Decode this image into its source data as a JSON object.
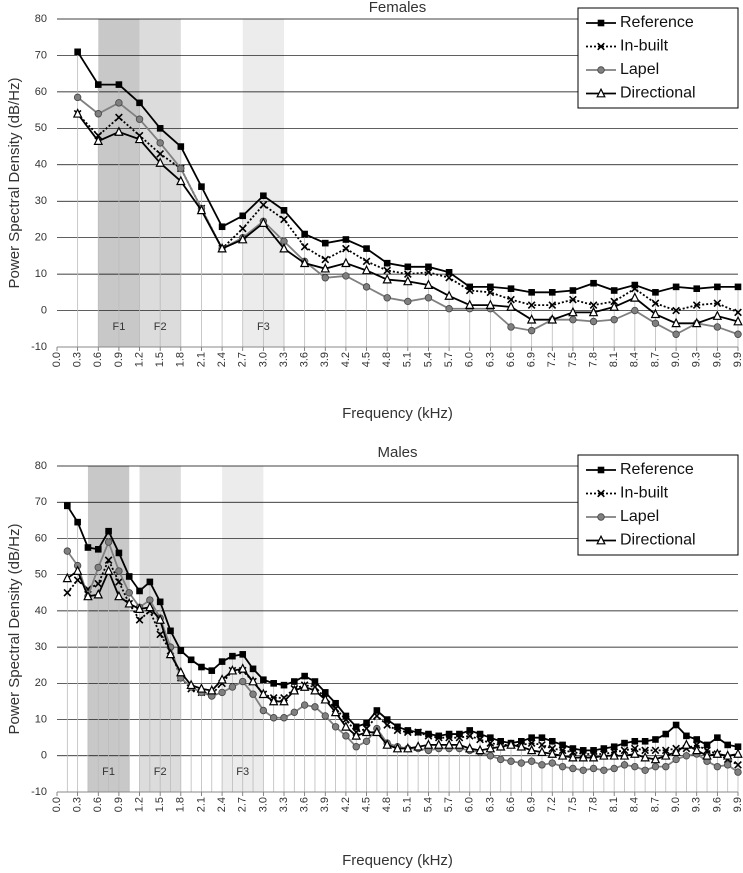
{
  "chart_data": [
    {
      "type": "line",
      "title": "Females",
      "x_label": "Frequency (kHz)",
      "y_label": "Power Spectral Density (dB/Hz)",
      "x": [
        0.3,
        0.6,
        0.9,
        1.2,
        1.5,
        1.8,
        2.1,
        2.4,
        2.7,
        3.0,
        3.3,
        3.6,
        3.9,
        4.2,
        4.5,
        4.8,
        5.1,
        5.4,
        5.7,
        6.0,
        6.3,
        6.6,
        6.9,
        7.2,
        7.5,
        7.8,
        8.1,
        8.4,
        8.7,
        9.0,
        9.3,
        9.6,
        9.9
      ],
      "series": [
        {
          "name": "Reference",
          "color": "#000000",
          "marker": "square",
          "dash": "solid",
          "values": [
            71,
            62,
            62,
            57,
            50,
            45,
            34,
            23,
            26,
            31.5,
            27.5,
            21,
            18.5,
            19.5,
            17,
            13,
            12,
            12,
            10.5,
            6.5,
            6.5,
            6,
            5,
            5,
            5.5,
            7.5,
            5.5,
            7,
            5,
            6.5,
            6,
            6.5,
            6.5
          ]
        },
        {
          "name": "In-built",
          "color": "#000000",
          "marker": "cross",
          "dash": "dotted",
          "values": [
            54,
            48,
            53,
            48,
            43,
            39,
            28,
            17,
            22.5,
            29,
            25,
            17.5,
            14,
            17,
            13.5,
            11,
            10,
            10.5,
            9,
            5.5,
            5,
            3,
            1.5,
            1.5,
            3,
            1.5,
            2.5,
            6,
            2,
            0,
            1.5,
            2,
            -0.5
          ]
        },
        {
          "name": "Lapel",
          "color": "#808080",
          "marker": "circle",
          "dash": "solid",
          "values": [
            58.5,
            54,
            57,
            52.5,
            46,
            39,
            28,
            17,
            20,
            24.5,
            19,
            13.5,
            9,
            9.5,
            6.5,
            3.5,
            2.5,
            3.5,
            0.5,
            0.5,
            0.5,
            -4.5,
            -5.5,
            -2.5,
            -2.5,
            -3,
            -2.5,
            0,
            -3.5,
            -6.5,
            -3.5,
            -4.5,
            -6.5
          ]
        },
        {
          "name": "Directional",
          "color": "#000000",
          "marker": "triangle",
          "dash": "solid",
          "values": [
            54,
            46.5,
            49,
            47,
            40.5,
            35.5,
            27.5,
            17,
            19.5,
            24,
            17,
            13,
            11.5,
            13,
            11,
            8.5,
            8,
            7,
            4,
            1.5,
            1.5,
            1,
            -2.5,
            -2.5,
            -0.5,
            -0.5,
            1,
            3.5,
            -1,
            -3.5,
            -3.5,
            -1.5,
            -3
          ]
        }
      ],
      "regions": [
        {
          "label": "F1",
          "from": 0.6,
          "to": 1.2,
          "color": "#c8c8c8"
        },
        {
          "label": "F2",
          "from": 1.2,
          "to": 1.8,
          "color": "#dcdcdc"
        },
        {
          "label": "F3",
          "from": 2.7,
          "to": 3.3,
          "color": "#ececec"
        }
      ],
      "xlim": [
        0,
        9.9
      ],
      "xticks": [
        {
          "value": 0,
          "label": "0.0"
        },
        0.3,
        0.6,
        0.9,
        1.2,
        1.5,
        1.8,
        2.1,
        2.4,
        2.7,
        {
          "value": 3,
          "label": "3.0"
        },
        3.3,
        3.6,
        3.9,
        4.2,
        4.5,
        4.8,
        5.1,
        5.4,
        5.7,
        {
          "value": 6,
          "label": "6.0"
        },
        6.3,
        6.6,
        6.9,
        7.2,
        7.5,
        7.8,
        8.1,
        8.4,
        8.7,
        {
          "value": 9,
          "label": "9.0"
        },
        9.3,
        9.6,
        9.9
      ],
      "ylim": [
        -10,
        80
      ],
      "yticks": [
        -10,
        0,
        10,
        20,
        30,
        40,
        50,
        60,
        70,
        80
      ],
      "grid": true,
      "legend": "upper right"
    },
    {
      "type": "line",
      "title": "Males",
      "x_label": "Frequency (kHz)",
      "y_label": "Power Spectral Density (dB/Hz)",
      "x": [
        0.15,
        0.3,
        0.45,
        0.6,
        0.75,
        0.9,
        1.05,
        1.2,
        1.35,
        1.5,
        1.65,
        1.8,
        1.95,
        2.1,
        2.25,
        2.4,
        2.55,
        2.7,
        2.85,
        3.0,
        3.15,
        3.3,
        3.45,
        3.6,
        3.75,
        3.9,
        4.05,
        4.2,
        4.35,
        4.5,
        4.65,
        4.8,
        4.95,
        5.1,
        5.25,
        5.4,
        5.55,
        5.7,
        5.85,
        6.0,
        6.15,
        6.3,
        6.45,
        6.6,
        6.75,
        6.9,
        7.05,
        7.2,
        7.35,
        7.5,
        7.65,
        7.8,
        7.95,
        8.1,
        8.25,
        8.4,
        8.55,
        8.7,
        8.85,
        9.0,
        9.15,
        9.3,
        9.45,
        9.6,
        9.75,
        9.9
      ],
      "series": [
        {
          "name": "Reference",
          "color": "#000000",
          "marker": "square",
          "dash": "solid",
          "values": [
            69,
            64.5,
            57.5,
            57,
            62,
            56,
            49.5,
            45.5,
            48,
            42.5,
            34.5,
            29,
            26.5,
            24.5,
            23.5,
            26,
            27.5,
            28,
            24,
            21,
            20,
            19.5,
            20.5,
            22,
            20.5,
            17.5,
            14.5,
            11,
            8,
            9,
            12.5,
            10,
            8,
            7,
            6.5,
            6,
            5.5,
            6,
            6,
            7,
            6,
            5,
            4,
            3.5,
            4,
            5,
            5,
            4,
            3,
            2,
            1.5,
            1.5,
            2,
            2.5,
            3.5,
            4,
            4,
            4.5,
            6,
            8.5,
            5.5,
            4.5,
            3,
            5,
            3,
            2.5
          ]
        },
        {
          "name": "In-built",
          "color": "#000000",
          "marker": "cross",
          "dash": "dotted",
          "values": [
            45,
            48.5,
            46,
            47.5,
            54,
            48,
            42,
            37.5,
            40,
            33.5,
            29,
            21.5,
            18.5,
            17.5,
            17,
            20,
            23.5,
            23.5,
            20.5,
            17,
            16,
            16,
            18.5,
            19.5,
            19,
            16,
            13,
            10,
            6.5,
            7.5,
            11,
            8.5,
            7,
            6.5,
            6.5,
            5.5,
            5,
            5,
            5,
            5.5,
            4.5,
            3.5,
            3,
            3,
            3,
            3.5,
            3,
            2,
            1.5,
            1,
            0.5,
            0.5,
            0.5,
            1,
            1.5,
            2,
            1.5,
            1.5,
            1.5,
            2,
            2,
            3,
            1.5,
            0.5,
            -1,
            -2.5
          ]
        },
        {
          "name": "Lapel",
          "color": "#808080",
          "marker": "circle",
          "dash": "solid",
          "values": [
            56.5,
            52.5,
            44,
            52,
            59,
            51,
            45,
            41,
            43,
            38,
            30,
            21.5,
            19,
            17.5,
            16.5,
            17.5,
            19,
            20.5,
            17,
            12.5,
            10.5,
            10.5,
            12,
            14,
            13.5,
            11,
            8,
            5.5,
            2.5,
            4,
            7.5,
            3.5,
            2.5,
            2,
            2,
            1.5,
            2,
            2,
            2,
            1.5,
            1,
            0,
            -1,
            -1.5,
            -2,
            -1.5,
            -2.5,
            -2,
            -3,
            -3.5,
            -4,
            -3.5,
            -4,
            -3.5,
            -2.5,
            -3,
            -4,
            -3,
            -3,
            -1,
            0,
            0.5,
            -1.5,
            -3,
            -2.5,
            -4.5
          ]
        },
        {
          "name": "Directional",
          "color": "#000000",
          "marker": "triangle",
          "dash": "solid",
          "values": [
            49,
            51,
            44,
            44.5,
            51,
            44,
            42,
            40.5,
            41,
            37.5,
            28,
            23,
            19.5,
            18.5,
            18,
            21,
            23.5,
            24,
            20.5,
            17,
            15,
            15,
            18,
            19,
            18,
            15.5,
            12,
            8,
            5.5,
            6.5,
            6.5,
            3,
            2,
            2,
            2.5,
            3,
            3,
            3,
            3,
            2,
            1.5,
            2,
            2.5,
            3,
            2.5,
            1.5,
            1,
            0.5,
            0,
            -0.5,
            -0.5,
            -0.5,
            0,
            0,
            0,
            0.5,
            -0.5,
            -1,
            0,
            1,
            3,
            1.5,
            0,
            0.5,
            0,
            0.5
          ]
        }
      ],
      "regions": [
        {
          "label": "F1",
          "from": 0.45,
          "to": 1.05,
          "color": "#c8c8c8"
        },
        {
          "label": "F2",
          "from": 1.2,
          "to": 1.8,
          "color": "#dcdcdc"
        },
        {
          "label": "F3",
          "from": 2.4,
          "to": 3.0,
          "color": "#ececec"
        }
      ],
      "xlim": [
        0,
        9.9
      ],
      "xticks": [
        {
          "value": 0,
          "label": "0.0"
        },
        0.3,
        0.6,
        0.9,
        1.2,
        1.5,
        1.8,
        2.1,
        2.4,
        2.7,
        {
          "value": 3,
          "label": "3.0"
        },
        3.3,
        3.6,
        3.9,
        4.2,
        4.5,
        4.8,
        5.1,
        5.4,
        5.7,
        {
          "value": 6,
          "label": "6.0"
        },
        6.3,
        6.6,
        6.9,
        7.2,
        7.5,
        7.8,
        8.1,
        8.4,
        8.7,
        {
          "value": 9,
          "label": "9.0"
        },
        9.3,
        9.6,
        9.9
      ],
      "ylim": [
        -10,
        80
      ],
      "yticks": [
        -10,
        0,
        10,
        20,
        30,
        40,
        50,
        60,
        70,
        80
      ],
      "grid": true,
      "legend": "upper right"
    }
  ]
}
